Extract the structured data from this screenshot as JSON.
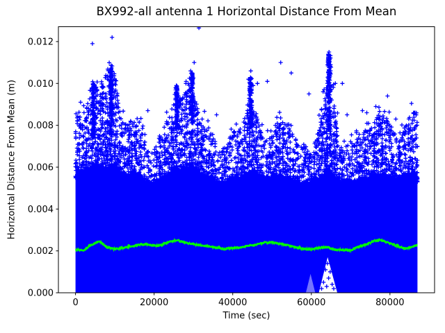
{
  "chart_data": {
    "type": "scatter",
    "title": "BX992-all antenna 1 Horizontal Distance From Mean",
    "xlabel": "Time (sec)",
    "ylabel": "Horizontal Distance From Mean (m)",
    "xlim": [
      -4350,
      91350
    ],
    "ylim": [
      0,
      0.01271
    ],
    "xticks": [
      0,
      20000,
      40000,
      60000,
      80000
    ],
    "xtick_labels": [
      "0",
      "20000",
      "40000",
      "60000",
      "80000"
    ],
    "yticks": [
      0,
      0.002,
      0.004,
      0.006,
      0.008,
      0.01,
      0.012
    ],
    "ytick_labels": [
      "0.000",
      "0.002",
      "0.004",
      "0.006",
      "0.008",
      "0.010",
      "0.012"
    ],
    "grid": false,
    "legend": null,
    "background_color": "#ffffff",
    "series": [
      {
        "name": "horizontal-distance-scatter",
        "type": "scatter",
        "marker": "+",
        "color": "#0000ff",
        "t_range": [
          0,
          87000
        ],
        "envelope_t": [
          0,
          1500,
          3000,
          4500,
          6000,
          7500,
          9000,
          10500,
          12000,
          13500,
          15000,
          16500,
          18000,
          19500,
          21000,
          22500,
          24000,
          25500,
          27000,
          28500,
          30000,
          31500,
          33000,
          34500,
          36000,
          37500,
          39000,
          40500,
          42000,
          43500,
          45000,
          46500,
          48000,
          49500,
          51000,
          52500,
          54000,
          55500,
          57000,
          58500,
          60000,
          61500,
          63000,
          64500,
          66000,
          67500,
          69000,
          70500,
          72000,
          73500,
          75000,
          76500,
          78000,
          79500,
          81000,
          82500,
          84000,
          85500,
          87000
        ],
        "solid_top": [
          0.006,
          0.0058,
          0.006,
          0.0061,
          0.0062,
          0.006,
          0.0062,
          0.0061,
          0.0058,
          0.0057,
          0.0058,
          0.0058,
          0.0054,
          0.0053,
          0.0055,
          0.0056,
          0.0058,
          0.006,
          0.006,
          0.0061,
          0.0062,
          0.0058,
          0.0057,
          0.0057,
          0.0054,
          0.0053,
          0.0055,
          0.0056,
          0.0056,
          0.0058,
          0.006,
          0.0058,
          0.0056,
          0.0056,
          0.0057,
          0.0057,
          0.0056,
          0.0055,
          0.0054,
          0.0053,
          0.0054,
          0.0055,
          0.0057,
          0.006,
          0.0056,
          0.0054,
          0.0054,
          0.0054,
          0.0055,
          0.0055,
          0.0056,
          0.0057,
          0.0058,
          0.0057,
          0.0056,
          0.0056,
          0.0057,
          0.0058,
          0.0058
        ],
        "dense_top": [
          0.0082,
          0.0078,
          0.0088,
          0.0093,
          0.0096,
          0.01,
          0.0106,
          0.0094,
          0.0081,
          0.0076,
          0.008,
          0.0078,
          0.0066,
          0.0063,
          0.007,
          0.0072,
          0.0085,
          0.009,
          0.0088,
          0.0094,
          0.0096,
          0.0081,
          0.0077,
          0.0074,
          0.0066,
          0.0063,
          0.007,
          0.0074,
          0.0073,
          0.0082,
          0.0086,
          0.008,
          0.0069,
          0.0071,
          0.0078,
          0.0079,
          0.0077,
          0.0072,
          0.0068,
          0.0066,
          0.0065,
          0.007,
          0.0086,
          0.01,
          0.0081,
          0.0067,
          0.0066,
          0.0068,
          0.007,
          0.0073,
          0.0074,
          0.008,
          0.0082,
          0.008,
          0.0074,
          0.0072,
          0.0076,
          0.0084,
          0.0082
        ],
        "sparse_top": [
          0.0093,
          0.009,
          0.0097,
          0.0104,
          0.0102,
          0.0108,
          0.0112,
          0.0101,
          0.0089,
          0.0083,
          0.0086,
          0.0084,
          0.0074,
          0.007,
          0.0077,
          0.008,
          0.0094,
          0.0098,
          0.0096,
          0.0103,
          0.0106,
          0.009,
          0.0086,
          0.0082,
          0.0073,
          0.007,
          0.0077,
          0.0081,
          0.0082,
          0.0092,
          0.01,
          0.009,
          0.0078,
          0.0079,
          0.0087,
          0.0088,
          0.0086,
          0.0081,
          0.0076,
          0.0074,
          0.0073,
          0.008,
          0.0098,
          0.0114,
          0.0096,
          0.0075,
          0.0074,
          0.0076,
          0.0079,
          0.0083,
          0.0083,
          0.0088,
          0.0091,
          0.009,
          0.0083,
          0.0081,
          0.0085,
          0.0091,
          0.0088
        ],
        "spikes": [
          {
            "t": 4600,
            "top": 0.01,
            "base": 0.0074,
            "halfwidth": 400
          },
          {
            "t": 9100,
            "top": 0.0107,
            "base": 0.0074,
            "halfwidth": 350
          },
          {
            "t": 25800,
            "top": 0.0099,
            "base": 0.0078,
            "halfwidth": 400
          },
          {
            "t": 29700,
            "top": 0.0105,
            "base": 0.008,
            "halfwidth": 400
          },
          {
            "t": 44500,
            "top": 0.0103,
            "base": 0.0076,
            "halfwidth": 500
          },
          {
            "t": 64500,
            "top": 0.0114,
            "base": 0.0078,
            "halfwidth": 450
          }
        ],
        "outliers": [
          [
            1300,
            0.0091
          ],
          [
            4300,
            0.0119
          ],
          [
            8200,
            0.0103
          ],
          [
            9300,
            0.0122
          ],
          [
            18400,
            0.0087
          ],
          [
            25500,
            0.0098
          ],
          [
            28100,
            0.01
          ],
          [
            29300,
            0.0106
          ],
          [
            30200,
            0.011
          ],
          [
            31400,
            0.01265
          ],
          [
            35900,
            0.0085
          ],
          [
            44000,
            0.0102
          ],
          [
            44600,
            0.0106
          ],
          [
            45200,
            0.0099
          ],
          [
            46300,
            0.01
          ],
          [
            48800,
            0.0101
          ],
          [
            52200,
            0.011
          ],
          [
            54900,
            0.0105
          ],
          [
            59400,
            0.0095
          ],
          [
            64500,
            0.0115
          ],
          [
            64800,
            0.0109
          ],
          [
            66100,
            0.01
          ],
          [
            67900,
            0.01
          ],
          [
            69100,
            0.0085
          ],
          [
            73000,
            0.0087
          ],
          [
            74100,
            0.0086
          ],
          [
            76400,
            0.0089
          ],
          [
            79400,
            0.0094
          ],
          [
            81500,
            0.0083
          ],
          [
            86000,
            0.0086
          ]
        ]
      },
      {
        "name": "running-mean",
        "type": "line",
        "color": "#00ff00",
        "t": [
          0,
          2000,
          4000,
          6000,
          8000,
          10000,
          12000,
          14000,
          16000,
          18000,
          20000,
          22000,
          24000,
          26000,
          28000,
          30000,
          32000,
          34000,
          36000,
          38000,
          40000,
          42000,
          44000,
          46000,
          48000,
          50000,
          52000,
          54000,
          56000,
          58000,
          60000,
          62000,
          64000,
          66000,
          68000,
          70000,
          72000,
          74000,
          76000,
          78000,
          80000,
          82000,
          84000,
          86000,
          87000
        ],
        "v": [
          0.00207,
          0.00202,
          0.00228,
          0.00246,
          0.00218,
          0.00208,
          0.00214,
          0.00218,
          0.0023,
          0.00232,
          0.00224,
          0.00228,
          0.00245,
          0.0025,
          0.00238,
          0.00232,
          0.00226,
          0.00222,
          0.00215,
          0.00208,
          0.00212,
          0.00218,
          0.00226,
          0.0023,
          0.00238,
          0.0024,
          0.00234,
          0.00226,
          0.00216,
          0.00208,
          0.00208,
          0.00215,
          0.00218,
          0.00207,
          0.00205,
          0.00202,
          0.0022,
          0.0023,
          0.00248,
          0.0025,
          0.00235,
          0.00222,
          0.00211,
          0.00222,
          0.00228
        ]
      }
    ],
    "gap_artifact": {
      "apex": [
        64150,
        0.0017
      ],
      "base_t": [
        61900,
        66600
      ],
      "stray_points": [
        [
          62600,
          0.0002
        ],
        [
          63100,
          0.0005
        ],
        [
          63600,
          0.0011
        ],
        [
          63900,
          0.0003
        ],
        [
          64100,
          0.0014
        ],
        [
          64400,
          0.0007
        ],
        [
          64800,
          0.001
        ],
        [
          65300,
          0.0004
        ],
        [
          63300,
          0.0016
        ],
        [
          65700,
          0.0002
        ]
      ],
      "secondary": {
        "apex": [
          59800,
          0.0009
        ],
        "base_t": [
          58600,
          61000
        ]
      }
    }
  }
}
